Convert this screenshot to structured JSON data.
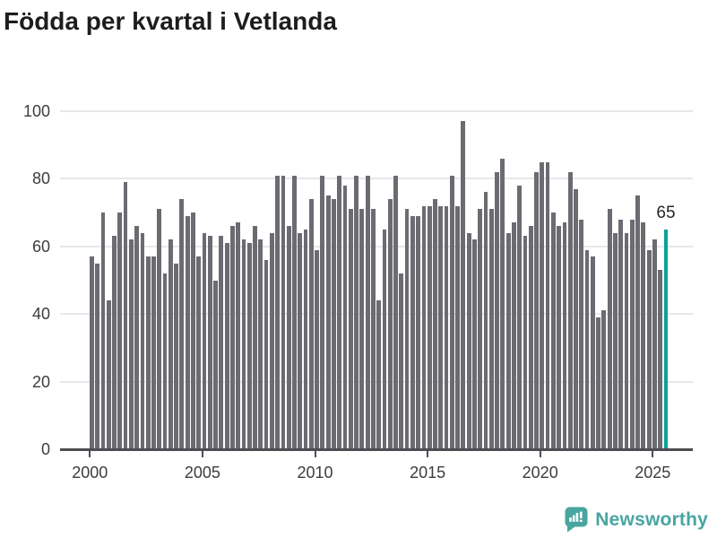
{
  "title": "Födda per kvartal i Vetlanda",
  "chart_data": {
    "type": "bar",
    "title": "Födda per kvartal i Vetlanda",
    "xlabel": "",
    "ylabel": "",
    "ylim": [
      0,
      100
    ],
    "y_ticks": [
      0,
      20,
      40,
      60,
      80,
      100
    ],
    "x_tick_labels": [
      "2000",
      "2005",
      "2010",
      "2015",
      "2020",
      "2025"
    ],
    "grid": "horizontal-gridlines",
    "legend": "none",
    "period": "quarterly",
    "x_start": "2000 Q1",
    "x_end": "2025 Q3",
    "categories": [
      "2000Q1",
      "2000Q2",
      "2000Q3",
      "2000Q4",
      "2001Q1",
      "2001Q2",
      "2001Q3",
      "2001Q4",
      "2002Q1",
      "2002Q2",
      "2002Q3",
      "2002Q4",
      "2003Q1",
      "2003Q2",
      "2003Q3",
      "2003Q4",
      "2004Q1",
      "2004Q2",
      "2004Q3",
      "2004Q4",
      "2005Q1",
      "2005Q2",
      "2005Q3",
      "2005Q4",
      "2006Q1",
      "2006Q2",
      "2006Q3",
      "2006Q4",
      "2007Q1",
      "2007Q2",
      "2007Q3",
      "2007Q4",
      "2008Q1",
      "2008Q2",
      "2008Q3",
      "2008Q4",
      "2009Q1",
      "2009Q2",
      "2009Q3",
      "2009Q4",
      "2010Q1",
      "2010Q2",
      "2010Q3",
      "2010Q4",
      "2011Q1",
      "2011Q2",
      "2011Q3",
      "2011Q4",
      "2012Q1",
      "2012Q2",
      "2012Q3",
      "2012Q4",
      "2013Q1",
      "2013Q2",
      "2013Q3",
      "2013Q4",
      "2014Q1",
      "2014Q2",
      "2014Q3",
      "2014Q4",
      "2015Q1",
      "2015Q2",
      "2015Q3",
      "2015Q4",
      "2016Q1",
      "2016Q2",
      "2016Q3",
      "2016Q4",
      "2017Q1",
      "2017Q2",
      "2017Q3",
      "2017Q4",
      "2018Q1",
      "2018Q2",
      "2018Q3",
      "2018Q4",
      "2019Q1",
      "2019Q2",
      "2019Q3",
      "2019Q4",
      "2020Q1",
      "2020Q2",
      "2020Q3",
      "2020Q4",
      "2021Q1",
      "2021Q2",
      "2021Q3",
      "2021Q4",
      "2022Q1",
      "2022Q2",
      "2022Q3",
      "2022Q4",
      "2023Q1",
      "2023Q2",
      "2023Q3",
      "2023Q4",
      "2024Q1",
      "2024Q2",
      "2024Q3",
      "2024Q4",
      "2025Q1",
      "2025Q2",
      "2025Q3"
    ],
    "values": [
      57,
      55,
      70,
      44,
      63,
      70,
      79,
      62,
      66,
      64,
      57,
      57,
      71,
      52,
      62,
      55,
      74,
      69,
      70,
      57,
      64,
      63,
      50,
      63,
      61,
      66,
      67,
      62,
      61,
      66,
      62,
      56,
      64,
      81,
      81,
      66,
      81,
      64,
      65,
      74,
      59,
      81,
      75,
      74,
      81,
      78,
      71,
      81,
      71,
      81,
      71,
      44,
      65,
      74,
      81,
      52,
      71,
      69,
      69,
      72,
      72,
      74,
      72,
      72,
      81,
      72,
      97,
      64,
      62,
      71,
      76,
      71,
      82,
      86,
      64,
      67,
      78,
      63,
      66,
      82,
      85,
      85,
      70,
      66,
      67,
      82,
      77,
      68,
      59,
      57,
      39,
      41,
      71,
      64,
      68,
      64,
      68,
      75,
      67,
      59,
      62,
      53,
      65
    ],
    "bar_color": "#6b6b72",
    "highlight_color": "#0ba29b",
    "highlight_index": 102,
    "highlight_value_label": "65"
  },
  "annotation": {
    "last_value_label": "65"
  },
  "branding": {
    "name": "Newsworthy",
    "text_color": "#49a5a1",
    "badge_color": "#4aa5a0",
    "icon": "newsworthy-badge-icon"
  }
}
